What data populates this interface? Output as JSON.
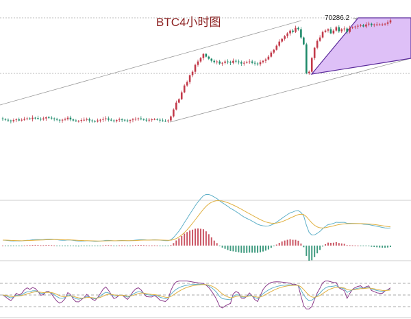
{
  "chart_data": {
    "type": "candlestick",
    "title": "BTC4小时图",
    "price_label": "70286.2",
    "price_label_value": 70286.2,
    "support_level": 69476,
    "colors": {
      "up": "#c23a4a",
      "down": "#1e8a6a",
      "fill_triangle": "#d6b0f5",
      "title": "#8b1e1e",
      "macd_dif": "#5fb0c8",
      "macd_dea": "#e0b040",
      "k": "#5fb0c8",
      "d": "#e0b040",
      "j": "#8a3a8a"
    },
    "closes": [
      68810,
      68800,
      68790,
      68780,
      68795,
      68805,
      68790,
      68800,
      68815,
      68820,
      68810,
      68830,
      68825,
      68815,
      68805,
      68820,
      68835,
      68830,
      68820,
      68810,
      68800,
      68790,
      68800,
      68810,
      68830,
      68805,
      68790,
      68780,
      68785,
      68795,
      68800,
      68810,
      68790,
      68780,
      68775,
      68790,
      68800,
      68810,
      68820,
      68800,
      68790,
      68780,
      68795,
      68805,
      68800,
      68790,
      68785,
      68795,
      68805,
      68815,
      68820,
      68810,
      68800,
      68795,
      68800,
      68805,
      68810,
      68800,
      68790,
      68785,
      68780,
      68790,
      68850,
      68950,
      69050,
      69100,
      69200,
      69300,
      69350,
      69450,
      69500,
      69600,
      69650,
      69700,
      69760,
      69720,
      69690,
      69660,
      69640,
      69650,
      69620,
      69630,
      69650,
      69640,
      69630,
      69660,
      69650,
      69640,
      69620,
      69630,
      69640,
      69650,
      69630,
      69620,
      69610,
      69640,
      69660,
      69680,
      69720,
      69780,
      69820,
      69880,
      69940,
      69980,
      70020,
      70060,
      70100,
      70080,
      70140,
      70120,
      70000,
      69900,
      69480,
      69500,
      69700,
      69850,
      69950,
      70000,
      70080,
      70100,
      70120,
      70060,
      70100,
      70150,
      70090,
      70120,
      70130,
      70080,
      70140,
      70150,
      70160,
      70170,
      70180,
      70160,
      70190,
      70200,
      70180,
      70190,
      70190,
      70190,
      70190,
      70200,
      70220,
      70250
    ],
    "panels": [
      "price",
      "MACD",
      "KDJ"
    ]
  }
}
